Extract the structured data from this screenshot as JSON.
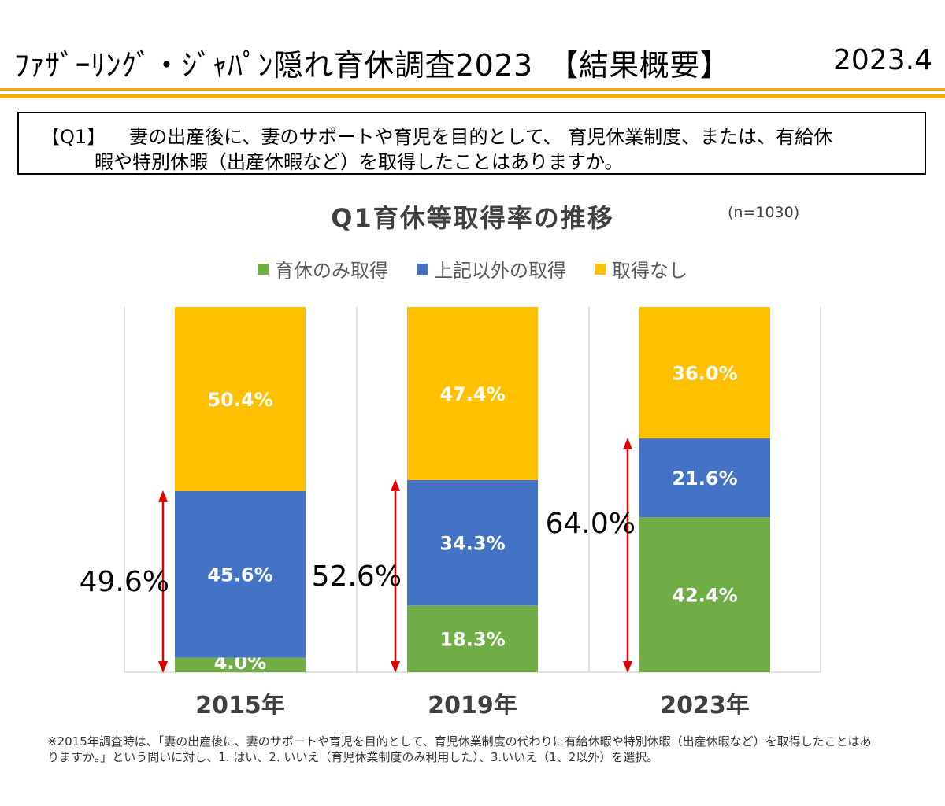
{
  "header": {
    "title": "ﾌｧｻﾞｰﾘﾝｸﾞ・ｼﾞｬﾊﾟﾝ隠れ育休調査2023　【結果概要】",
    "date": "2023.4"
  },
  "question": {
    "tag": "【Q1】",
    "line1": "妻の出産後に、妻のサポートや育児を目的として、 育児休業制度、または、有給休",
    "line2": "暇や特別休暇（出産休暇など）を取得したことはありますか。"
  },
  "chart_data": {
    "type": "bar",
    "stacked": true,
    "title": "Q1育休等取得率の推移",
    "sample_note": "(n=1030)",
    "categories": [
      "2015年",
      "2019年",
      "2023年"
    ],
    "ylim": [
      0,
      100
    ],
    "grid": true,
    "legend_position": "top",
    "series": [
      {
        "name": "育休のみ取得",
        "values": [
          4.0,
          18.3,
          42.4
        ],
        "labels": [
          "4.0%",
          "18.3%",
          "42.4%"
        ],
        "color": "#70AD47"
      },
      {
        "name": "上記以外の取得",
        "values": [
          45.6,
          34.3,
          21.6
        ],
        "labels": [
          "45.6%",
          "34.3%",
          "21.6%"
        ],
        "color": "#4472C4"
      },
      {
        "name": "取得なし",
        "values": [
          50.4,
          47.4,
          36.0
        ],
        "labels": [
          "50.4%",
          "47.4%",
          "36.0%"
        ],
        "color": "#FFC000"
      }
    ],
    "totals": {
      "values": [
        49.6,
        52.6,
        64.0
      ],
      "labels": [
        "49.6%",
        "52.6%",
        "64.0%"
      ],
      "arrow_color": "#E00000"
    }
  },
  "footnote": "※2015年調査時は、「妻の出産後に、妻のサポートや育児を目的として、育児休業制度の代わりに有給休暇や特別休暇（出産休暇など）を取得したことはありますか。」という問いに対し、1. はい、2. いいえ（育児休業制度のみ利用した）、3.いいえ（1、2以外）を選択。"
}
